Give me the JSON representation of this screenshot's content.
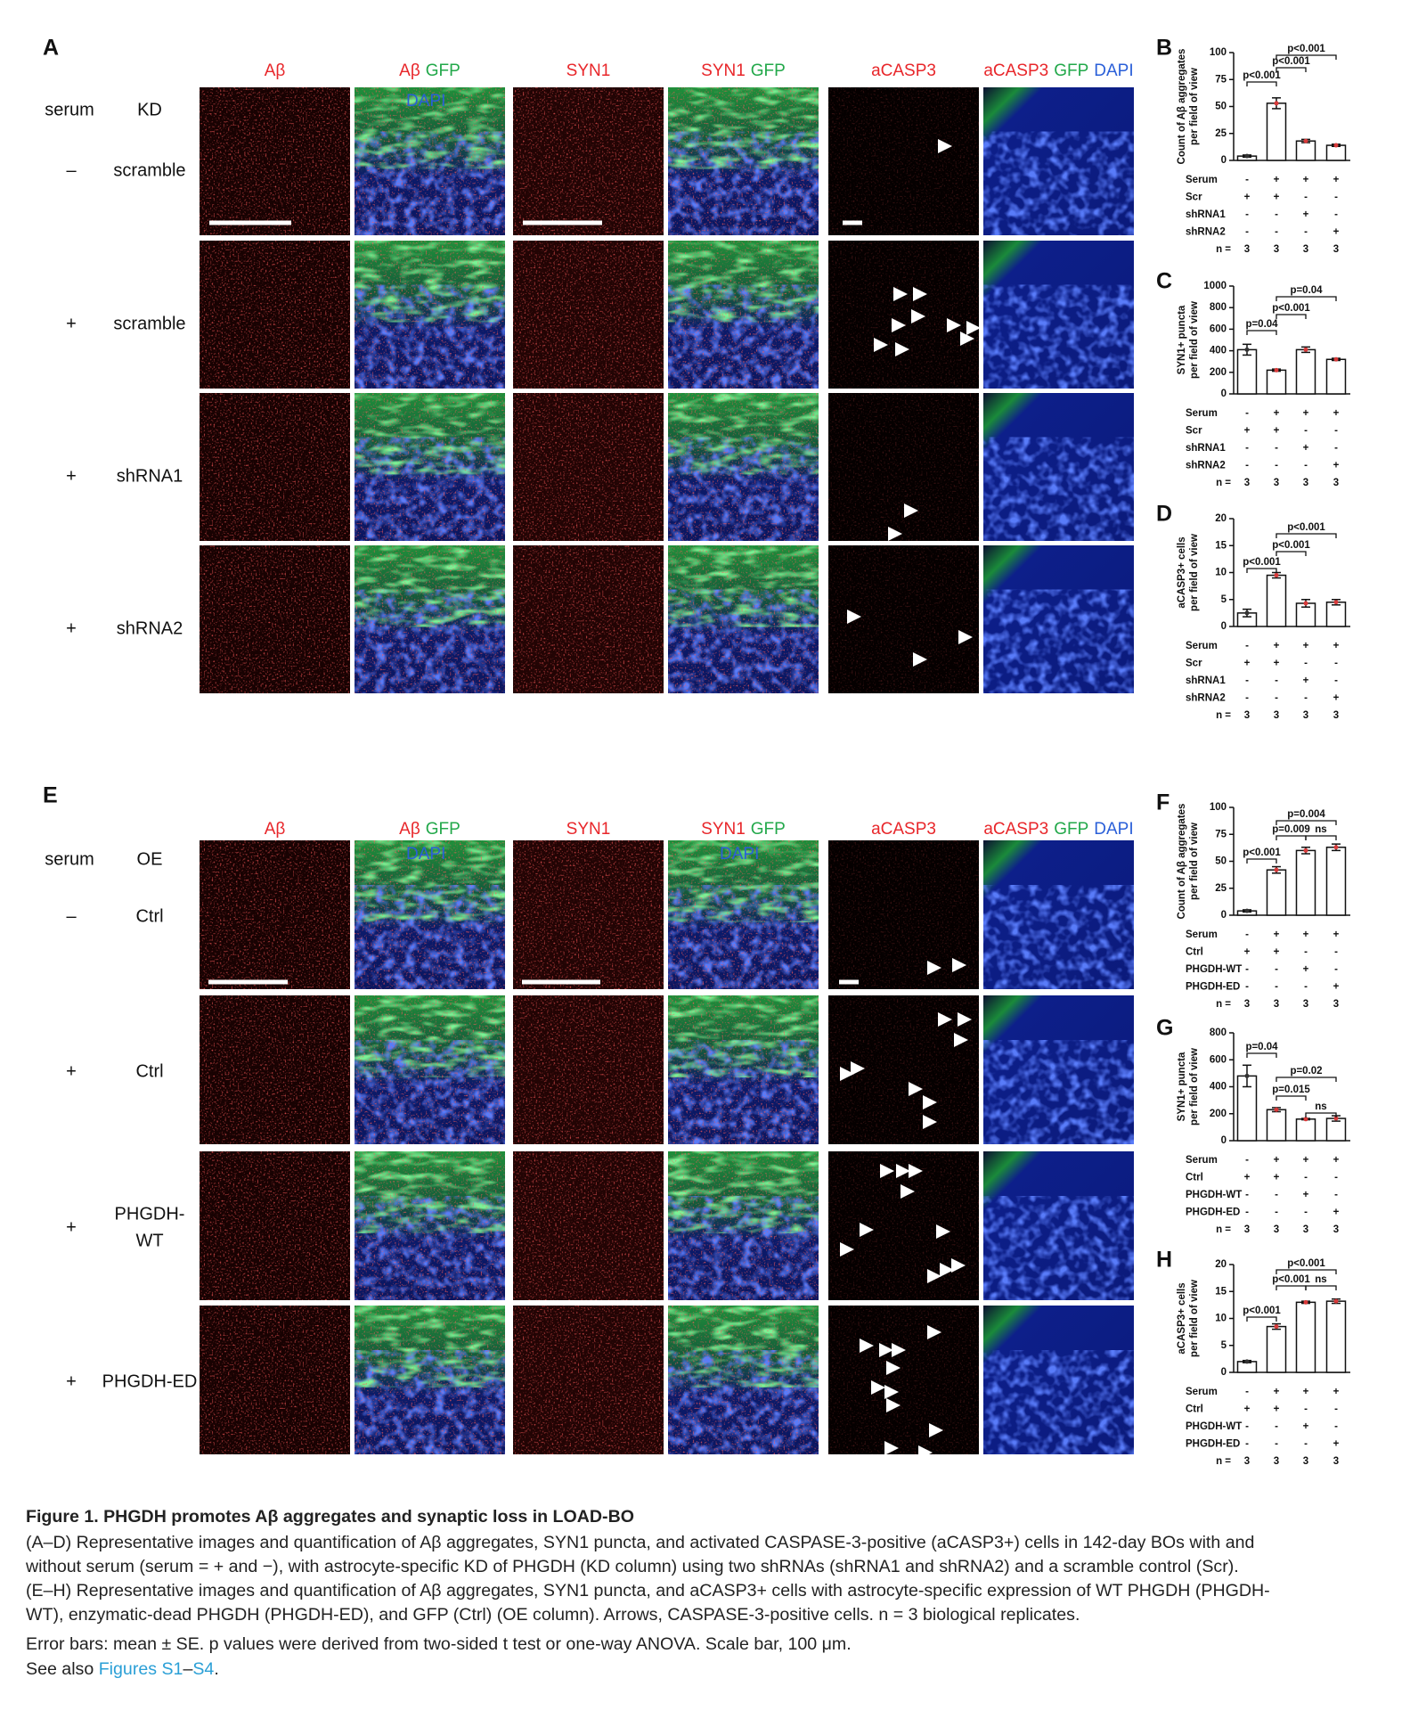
{
  "sections": [
    {
      "label": "A",
      "headers": [
        {
          "parts": [
            {
              "text": "Aβ",
              "color": "#e8262a"
            }
          ]
        },
        {
          "parts": [
            {
              "text": "Aβ",
              "color": "#e8262a"
            },
            {
              "text": "GFP",
              "color": "#22a84a"
            }
          ],
          "sub": {
            "text": "DAPI",
            "color": "#2a5fd8"
          }
        },
        {
          "parts": [
            {
              "text": "SYN1",
              "color": "#e8262a"
            }
          ]
        },
        {
          "parts": [
            {
              "text": "SYN1",
              "color": "#e8262a"
            },
            {
              "text": "GFP",
              "color": "#22a84a"
            }
          ]
        },
        {
          "parts": [
            {
              "text": "aCASP3",
              "color": "#e8262a"
            }
          ]
        },
        {
          "parts": [
            {
              "text": "aCASP3",
              "color": "#e8262a"
            },
            {
              "text": "GFP",
              "color": "#22a84a"
            },
            {
              "text": "DAPI",
              "color": "#2a5fd8"
            }
          ]
        }
      ],
      "row_header": [
        "serum",
        "KD"
      ],
      "rows": [
        {
          "serum": "–",
          "name": [
            "scramble"
          ]
        },
        {
          "serum": "+",
          "name": [
            "scramble"
          ]
        },
        {
          "serum": "+",
          "name": [
            "shRNA1"
          ]
        },
        {
          "serum": "+",
          "name": [
            "shRNA2"
          ]
        }
      ]
    },
    {
      "label": "E",
      "headers": [
        {
          "parts": [
            {
              "text": "Aβ",
              "color": "#e8262a"
            }
          ]
        },
        {
          "parts": [
            {
              "text": "Aβ",
              "color": "#e8262a"
            },
            {
              "text": "GFP",
              "color": "#22a84a"
            }
          ],
          "sub": {
            "text": "DAPI",
            "color": "#2a5fd8"
          }
        },
        {
          "parts": [
            {
              "text": "SYN1",
              "color": "#e8262a"
            }
          ]
        },
        {
          "parts": [
            {
              "text": "SYN1",
              "color": "#e8262a"
            },
            {
              "text": "GFP",
              "color": "#22a84a"
            }
          ],
          "sub": {
            "text": "DAPI",
            "color": "#2a5fd8"
          }
        },
        {
          "parts": [
            {
              "text": "aCASP3",
              "color": "#e8262a"
            }
          ]
        },
        {
          "parts": [
            {
              "text": "aCASP3",
              "color": "#e8262a"
            },
            {
              "text": "GFP",
              "color": "#22a84a"
            },
            {
              "text": "DAPI",
              "color": "#2a5fd8"
            }
          ]
        }
      ],
      "row_header": [
        "serum",
        "OE"
      ],
      "rows": [
        {
          "serum": "–",
          "name": [
            "Ctrl"
          ]
        },
        {
          "serum": "+",
          "name": [
            "Ctrl"
          ]
        },
        {
          "serum": "+",
          "name": [
            "PHGDH-",
            "WT"
          ]
        },
        {
          "serum": "+",
          "name": [
            "PHGDH-ED"
          ]
        }
      ]
    }
  ],
  "charts": [
    {
      "label": "B",
      "type": "bar",
      "ylabel": [
        "Count of Aβ aggregates",
        "per field of view"
      ],
      "ylim": [
        0,
        100
      ],
      "yticks": [
        0,
        25,
        50,
        75,
        100
      ],
      "values": [
        4,
        53,
        18,
        14
      ],
      "errors": [
        1,
        5,
        1.5,
        1
      ],
      "comparisons": [
        "p<0.001",
        "p<0.001",
        "p<0.001"
      ],
      "table": [
        {
          "label": "Serum",
          "cells": [
            "-",
            "+",
            "+",
            "+"
          ]
        },
        {
          "label": "Scr",
          "cells": [
            "+",
            "+",
            "-",
            "-"
          ]
        },
        {
          "label": "shRNA1",
          "cells": [
            "-",
            "-",
            "+",
            "-"
          ]
        },
        {
          "label": "shRNA2",
          "cells": [
            "-",
            "-",
            "-",
            "+"
          ]
        },
        {
          "label": "n =",
          "cells": [
            3,
            3,
            3,
            3
          ]
        }
      ]
    },
    {
      "label": "C",
      "type": "bar",
      "ylabel": [
        "SYN1+ puncta",
        "per field of view"
      ],
      "ylim": [
        0,
        1000
      ],
      "yticks": [
        0,
        200,
        400,
        600,
        800,
        1000
      ],
      "values": [
        410,
        220,
        410,
        320
      ],
      "errors": [
        50,
        10,
        25,
        10
      ],
      "comparisons": [
        "p=0.04",
        "p<0.001",
        "p=0.04"
      ],
      "table": [
        {
          "label": "Serum",
          "cells": [
            "-",
            "+",
            "+",
            "+"
          ]
        },
        {
          "label": "Scr",
          "cells": [
            "+",
            "+",
            "-",
            "-"
          ]
        },
        {
          "label": "shRNA1",
          "cells": [
            "-",
            "-",
            "+",
            "-"
          ]
        },
        {
          "label": "shRNA2",
          "cells": [
            "-",
            "-",
            "-",
            "+"
          ]
        },
        {
          "label": "n =",
          "cells": [
            3,
            3,
            3,
            3
          ]
        }
      ]
    },
    {
      "label": "D",
      "type": "bar",
      "ylabel": [
        "aCASP3+ cells",
        "per field of view"
      ],
      "ylim": [
        0,
        20
      ],
      "yticks": [
        0,
        5,
        10,
        15,
        20
      ],
      "values": [
        2.5,
        9.5,
        4.3,
        4.5
      ],
      "errors": [
        0.7,
        0.5,
        0.7,
        0.5
      ],
      "comparisons": [
        "p<0.001",
        "p<0.001",
        "p<0.001"
      ],
      "table": [
        {
          "label": "Serum",
          "cells": [
            "-",
            "+",
            "+",
            "+"
          ]
        },
        {
          "label": "Scr",
          "cells": [
            "+",
            "+",
            "-",
            "-"
          ]
        },
        {
          "label": "shRNA1",
          "cells": [
            "-",
            "-",
            "+",
            "-"
          ]
        },
        {
          "label": "shRNA2",
          "cells": [
            "-",
            "-",
            "-",
            "+"
          ]
        },
        {
          "label": "n =",
          "cells": [
            3,
            3,
            3,
            3
          ]
        }
      ]
    },
    {
      "label": "F",
      "type": "bar",
      "ylabel": [
        "Count of Aβ aggregates",
        "per field of view"
      ],
      "ylim": [
        0,
        100
      ],
      "yticks": [
        0,
        25,
        50,
        75,
        100
      ],
      "values": [
        4,
        42,
        60,
        63
      ],
      "errors": [
        1,
        3,
        3,
        3
      ],
      "comparisons": [
        "p<0.001",
        "p=0.009",
        "ns",
        "p=0.004"
      ],
      "table": [
        {
          "label": "Serum",
          "cells": [
            "-",
            "+",
            "+",
            "+"
          ]
        },
        {
          "label": "Ctrl",
          "cells": [
            "+",
            "+",
            "-",
            "-"
          ]
        },
        {
          "label": "PHGDH-WT",
          "cells": [
            "-",
            "-",
            "+",
            "-"
          ]
        },
        {
          "label": "PHGDH-ED",
          "cells": [
            "-",
            "-",
            "-",
            "+"
          ]
        },
        {
          "label": "n =",
          "cells": [
            3,
            3,
            3,
            3
          ]
        }
      ]
    },
    {
      "label": "G",
      "type": "bar",
      "ylabel": [
        "SYN1+ puncta",
        "per field of view"
      ],
      "ylim": [
        0,
        800
      ],
      "yticks": [
        0,
        200,
        400,
        600,
        800
      ],
      "values": [
        480,
        230,
        160,
        165
      ],
      "errors": [
        80,
        15,
        5,
        20
      ],
      "comparisons": [
        "p=0.04",
        "p=0.015",
        "ns",
        "p=0.02"
      ],
      "table": [
        {
          "label": "Serum",
          "cells": [
            "-",
            "+",
            "+",
            "+"
          ]
        },
        {
          "label": "Ctrl",
          "cells": [
            "+",
            "+",
            "-",
            "-"
          ]
        },
        {
          "label": "PHGDH-WT",
          "cells": [
            "-",
            "-",
            "+",
            "-"
          ]
        },
        {
          "label": "PHGDH-ED",
          "cells": [
            "-",
            "-",
            "-",
            "+"
          ]
        },
        {
          "label": "n =",
          "cells": [
            3,
            3,
            3,
            3
          ]
        }
      ]
    },
    {
      "label": "H",
      "type": "bar",
      "ylabel": [
        "aCASP3+ cells",
        "per field of view"
      ],
      "ylim": [
        0,
        20
      ],
      "yticks": [
        0,
        5,
        10,
        15,
        20
      ],
      "values": [
        2,
        8.5,
        13,
        13.2
      ],
      "errors": [
        0.2,
        0.5,
        0.2,
        0.4
      ],
      "comparisons": [
        "p<0.001",
        "p<0.001",
        "ns",
        "p<0.001"
      ],
      "table": [
        {
          "label": "Serum",
          "cells": [
            "-",
            "+",
            "+",
            "+"
          ]
        },
        {
          "label": "Ctrl",
          "cells": [
            "+",
            "+",
            "-",
            "-"
          ]
        },
        {
          "label": "PHGDH-WT",
          "cells": [
            "-",
            "-",
            "+",
            "-"
          ]
        },
        {
          "label": "PHGDH-ED",
          "cells": [
            "-",
            "-",
            "-",
            "+"
          ]
        },
        {
          "label": "n =",
          "cells": [
            3,
            3,
            3,
            3
          ]
        }
      ]
    }
  ],
  "caption": {
    "title": "Figure 1.  PHGDH promotes Aβ aggregates and synaptic loss in LOAD-BO",
    "lines": [
      "(A–D) Representative images and quantification of Aβ aggregates, SYN1 puncta, and activated CASPASE-3-positive (aCASP3+) cells in 142-day BOs with and",
      "without serum (serum = + and −), with astrocyte-specific KD of PHGDH (KD column) using two shRNAs (shRNA1 and shRNA2) and a scramble control (Scr).",
      "(E–H) Representative images and quantification of Aβ aggregates, SYN1 puncta, and aCASP3+ cells with astrocyte-specific expression of WT PHGDH (PHGDH-",
      "WT), enzymatic-dead PHGDH (PHGDH-ED), and GFP (Ctrl) (OE column). Arrows, CASPASE-3-positive cells. n = 3 biological replicates.",
      "Error bars: mean ± SE. p values were derived from two-sided t test or one-way ANOVA. Scale bar, 100 μm."
    ],
    "see_also": [
      {
        "text": "See also "
      },
      {
        "text": "Figures S1",
        "link": true
      },
      {
        "text": "–"
      },
      {
        "text": "S4",
        "link": true
      },
      {
        "text": "."
      }
    ]
  }
}
